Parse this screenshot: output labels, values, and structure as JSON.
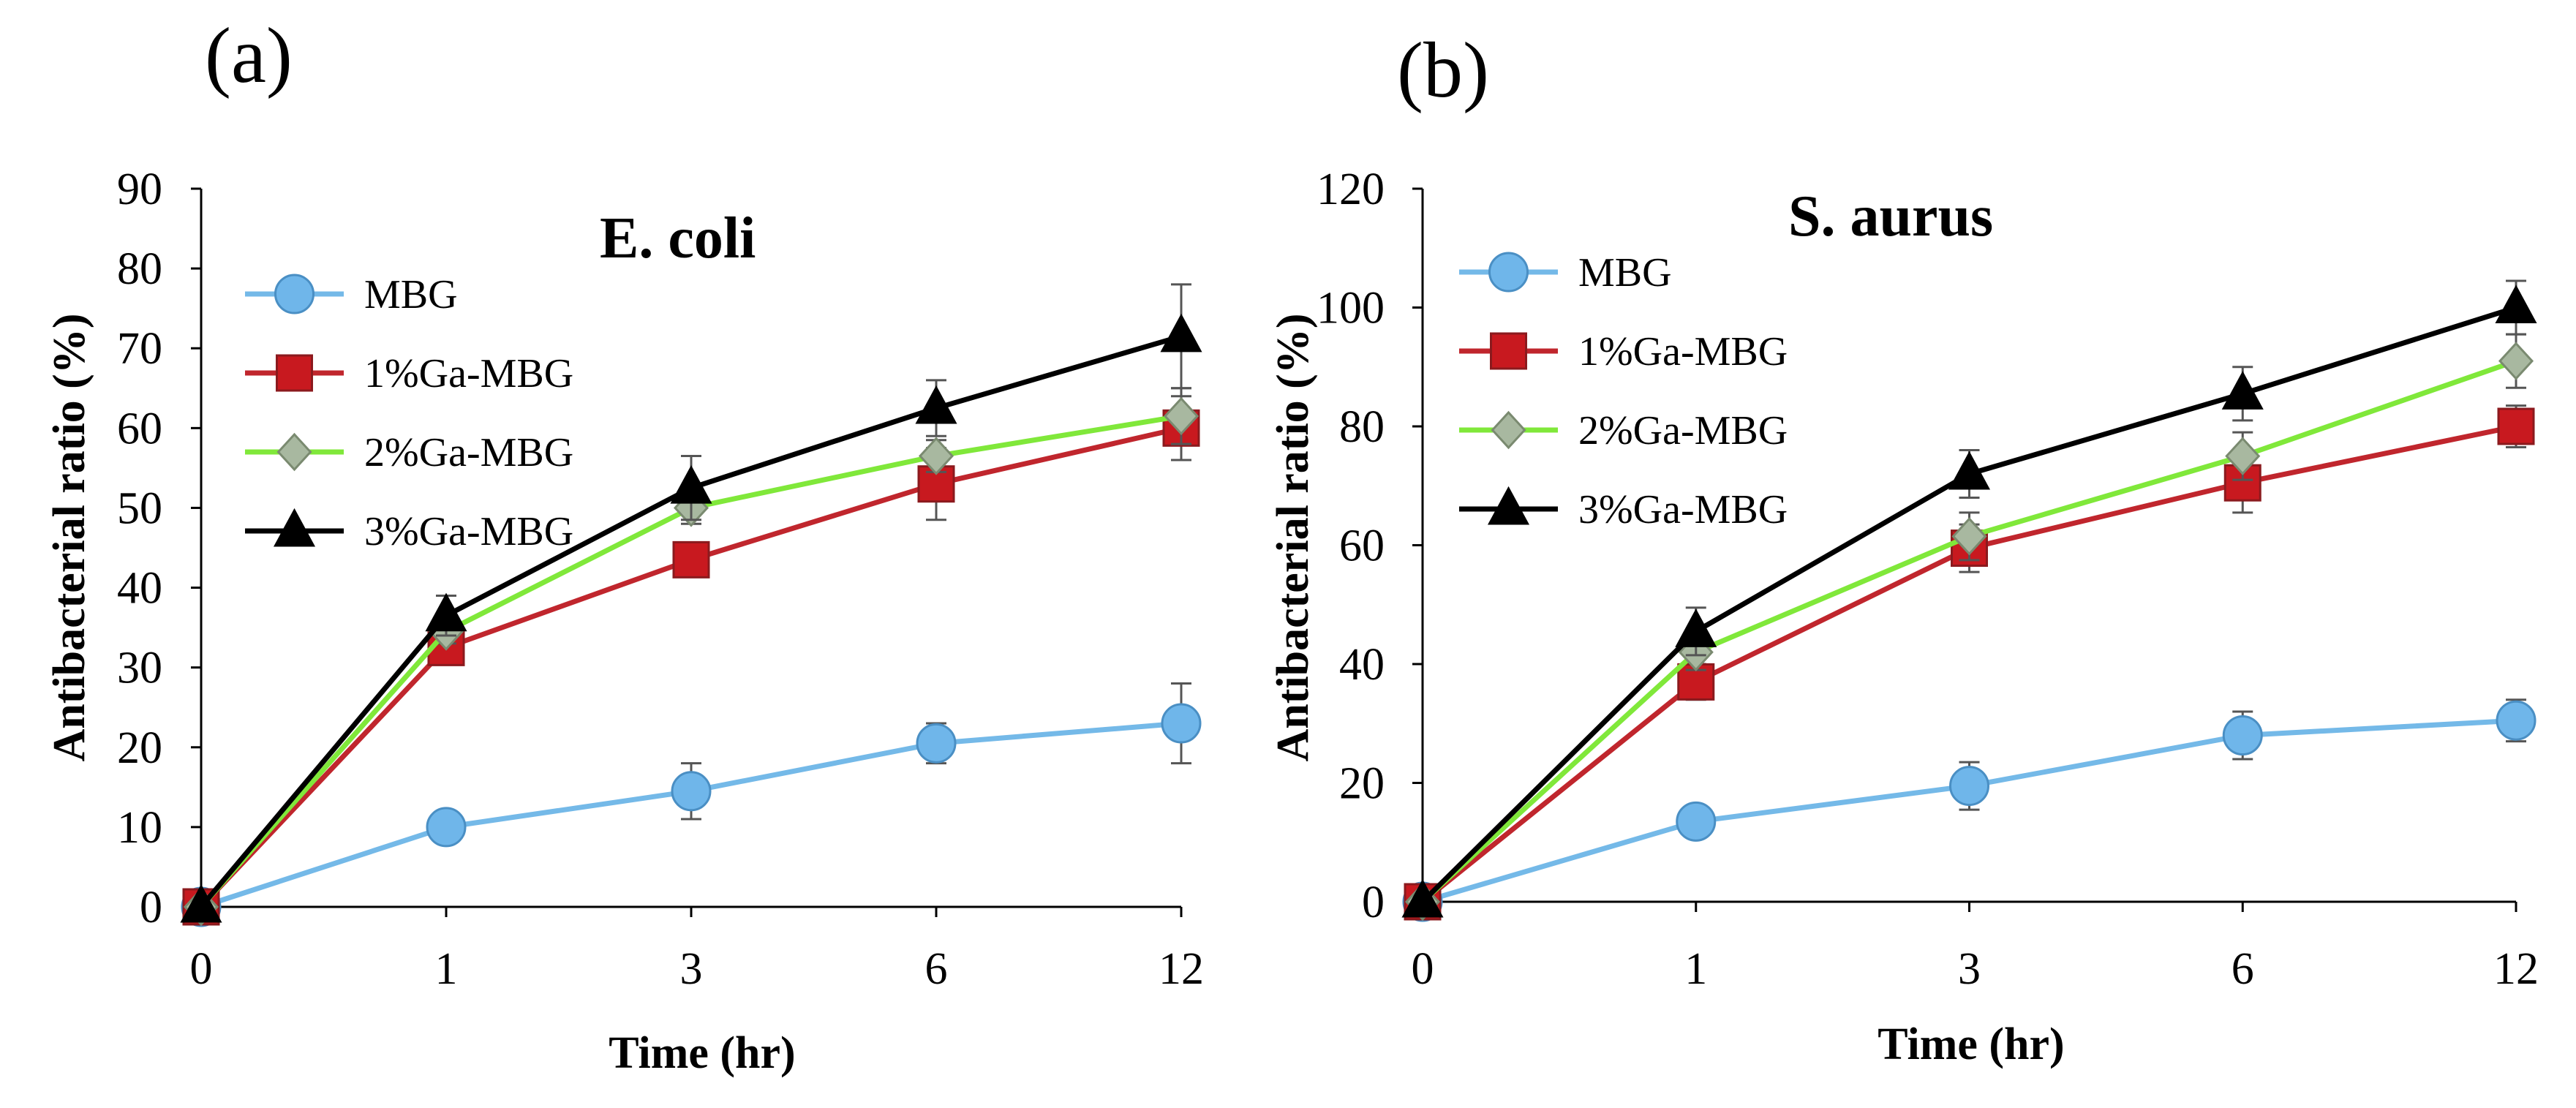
{
  "panels": [
    {
      "label": "(a)"
    },
    {
      "label": "(b)"
    }
  ],
  "chart_data": [
    {
      "type": "line",
      "title": "E. coli",
      "xlabel": "Time (hr)",
      "ylabel": "Antibacterial ratio (%)",
      "categories": [
        "0",
        "1",
        "3",
        "6",
        "12"
      ],
      "ylim": [
        0,
        90
      ],
      "yticks": [
        0,
        10,
        20,
        30,
        40,
        50,
        60,
        70,
        80,
        90
      ],
      "legend_position": "top-left",
      "series": [
        {
          "name": "MBG",
          "marker": "circle",
          "line_color": "#74b9e8",
          "marker_fill": "#6fb6ea",
          "marker_stroke": "#4a8fc4",
          "values": [
            0,
            10,
            14.5,
            20.5,
            23
          ],
          "errors": [
            0,
            1,
            3.5,
            2.5,
            5
          ]
        },
        {
          "name": "1%Ga-MBG",
          "marker": "square",
          "line_color": "#c0262d",
          "marker_fill": "#c8191f",
          "marker_stroke": "#8b1a1e",
          "values": [
            0,
            32.5,
            43.5,
            53,
            60
          ],
          "errors": [
            0,
            1.5,
            2,
            4.5,
            4
          ]
        },
        {
          "name": "2%Ga-MBG",
          "marker": "diamond",
          "line_color": "#80e83a",
          "marker_fill": "#a8b8a0",
          "marker_stroke": "#7a8a70",
          "values": [
            0,
            34.5,
            50,
            56.5,
            61.5
          ],
          "errors": [
            0,
            1.5,
            2,
            2,
            3.5
          ]
        },
        {
          "name": "3%Ga-MBG",
          "marker": "triangle",
          "line_color": "#000000",
          "marker_fill": "#000000",
          "marker_stroke": "#000000",
          "values": [
            0,
            36.5,
            52.5,
            62.5,
            71.5
          ],
          "errors": [
            0,
            2.5,
            4,
            3.5,
            6.5
          ]
        }
      ]
    },
    {
      "type": "line",
      "title": "S. aurus",
      "xlabel": "Time (hr)",
      "ylabel": "Antibacterial ratio (%)",
      "categories": [
        "0",
        "1",
        "3",
        "6",
        "12"
      ],
      "ylim": [
        0,
        120
      ],
      "yticks": [
        0,
        20,
        40,
        60,
        80,
        100,
        120
      ],
      "legend_position": "top-left",
      "series": [
        {
          "name": "MBG",
          "marker": "circle",
          "line_color": "#74b9e8",
          "marker_fill": "#6fb6ea",
          "marker_stroke": "#4a8fc4",
          "values": [
            0,
            13.5,
            19.5,
            28,
            30.5
          ],
          "errors": [
            0,
            2,
            4,
            4,
            3.5
          ]
        },
        {
          "name": "1%Ga-MBG",
          "marker": "square",
          "line_color": "#c0262d",
          "marker_fill": "#c8191f",
          "marker_stroke": "#8b1a1e",
          "values": [
            0,
            37,
            59.5,
            70.5,
            80
          ],
          "errors": [
            0,
            3,
            4,
            5,
            3.5
          ]
        },
        {
          "name": "2%Ga-MBG",
          "marker": "diamond",
          "line_color": "#80e83a",
          "marker_fill": "#a8b8a0",
          "marker_stroke": "#7a8a70",
          "values": [
            0,
            42,
            61.5,
            75,
            91
          ],
          "errors": [
            0,
            3,
            4,
            4,
            4.5
          ]
        },
        {
          "name": "3%Ga-MBG",
          "marker": "triangle",
          "line_color": "#000000",
          "marker_fill": "#000000",
          "marker_stroke": "#000000",
          "values": [
            0,
            45.5,
            72,
            85.5,
            100
          ],
          "errors": [
            0,
            4,
            4,
            4.5,
            4.5
          ]
        }
      ]
    }
  ]
}
